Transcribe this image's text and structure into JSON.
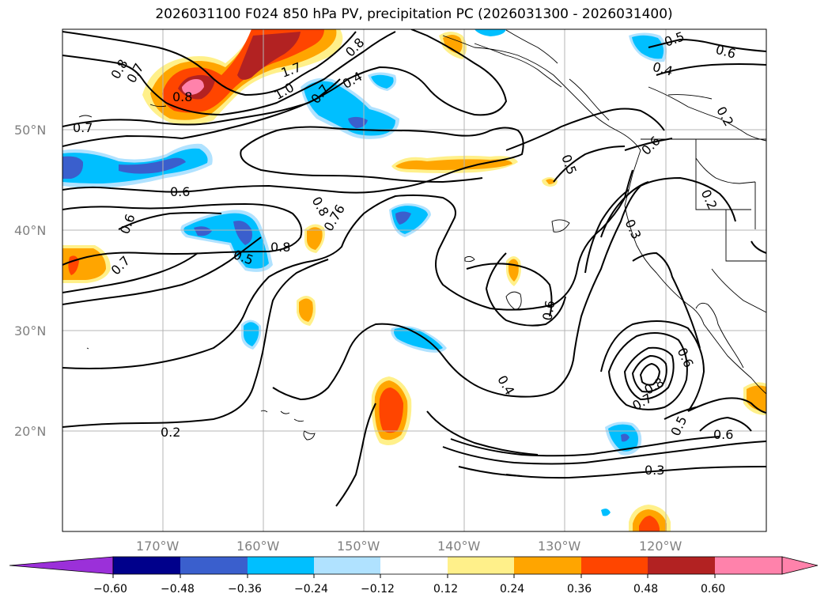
{
  "title": "2026031100 F024 850 hPa PV, precipitation PC (2026031300 - 2026031400)",
  "map": {
    "lon_range": [
      -180,
      -110
    ],
    "lat_range": [
      10,
      60
    ],
    "lon_labels": [
      "170°W",
      "160°W",
      "150°W",
      "140°W",
      "130°W",
      "120°W"
    ],
    "lat_labels": [
      "50°N",
      "40°N",
      "30°N",
      "20°N"
    ]
  },
  "contour_labels": [
    "0.8",
    "0.7",
    "0.7",
    "0.6",
    "0.6",
    "0.7",
    "0.8",
    "1.0",
    "1.7",
    "0.8",
    "0.4",
    "0.7",
    "0.8",
    "0.76",
    "0.8",
    "0.5",
    "0.6",
    "0.5",
    "0.5",
    "0.4",
    "0.6",
    "0.2",
    "0.2",
    "0.3",
    "0.6",
    "0.4",
    "0.8",
    "0.7",
    "0.6",
    "0.5",
    "0.6",
    "0.3",
    "0.2"
  ],
  "colorbar": {
    "ticks": [
      "−0.60",
      "−0.48",
      "−0.36",
      "−0.24",
      "−0.12",
      "0.12",
      "0.24",
      "0.36",
      "0.48",
      "0.60"
    ],
    "colors": [
      "#9b30d9",
      "#00008b",
      "#3a5fcd",
      "#00bfff",
      "#b0e2ff",
      "#ffffff",
      "#fff08a",
      "#ffa500",
      "#ff4500",
      "#b22222",
      "#ff82ab",
      "#ff82ab"
    ]
  }
}
